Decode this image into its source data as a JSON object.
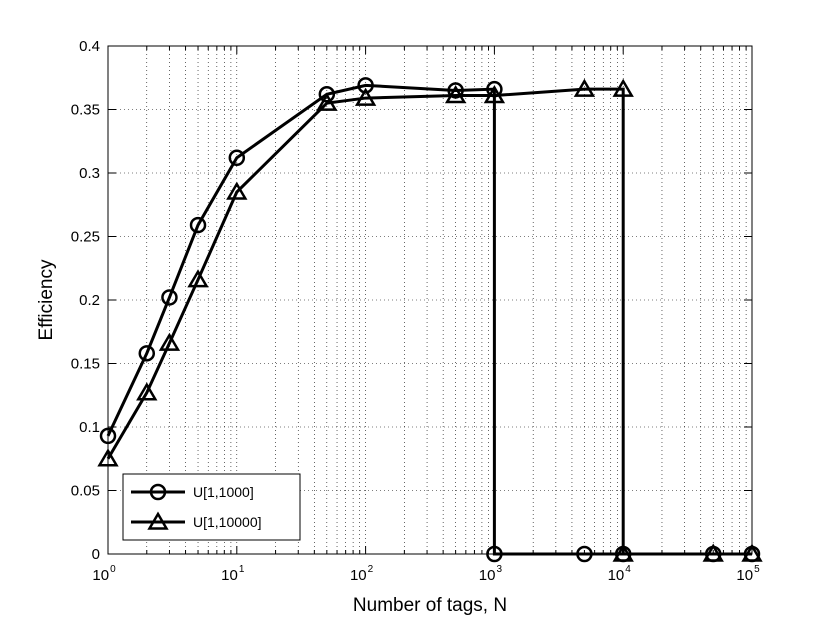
{
  "chart_data": {
    "type": "line",
    "xlabel": "Number of tags, N",
    "ylabel": "Efficiency",
    "x_scale": "log",
    "xlim": [
      1,
      100000
    ],
    "ylim": [
      0,
      0.4
    ],
    "x_ticks": [
      1,
      10,
      100,
      1000,
      10000,
      100000
    ],
    "x_tick_labels": [
      {
        "base": "10",
        "exp": "0"
      },
      {
        "base": "10",
        "exp": "1"
      },
      {
        "base": "10",
        "exp": "2"
      },
      {
        "base": "10",
        "exp": "3"
      },
      {
        "base": "10",
        "exp": "4"
      },
      {
        "base": "10",
        "exp": "5"
      }
    ],
    "y_ticks": [
      0,
      0.05,
      0.1,
      0.15,
      0.2,
      0.25,
      0.3,
      0.35,
      0.4
    ],
    "y_tick_labels": [
      "0",
      "0.05",
      "0.1",
      "0.15",
      "0.2",
      "0.25",
      "0.3",
      "0.35",
      "0.4"
    ],
    "grid": true,
    "legend_position": "bottom-left",
    "series": [
      {
        "name": "U[1,1000]",
        "marker": "circle",
        "color": "#000000",
        "x": [
          1,
          2,
          3,
          5,
          10,
          50,
          100,
          500,
          1000,
          1000,
          5000,
          10000,
          50000,
          100000
        ],
        "y": [
          0.093,
          0.158,
          0.202,
          0.259,
          0.312,
          0.362,
          0.369,
          0.365,
          0.366,
          0,
          0,
          0,
          0,
          0
        ]
      },
      {
        "name": "U[1,10000]",
        "marker": "triangle",
        "color": "#000000",
        "x": [
          1,
          2,
          3,
          5,
          10,
          50,
          100,
          500,
          1000,
          5000,
          10000,
          10000,
          50000,
          100000
        ],
        "y": [
          0.075,
          0.127,
          0.166,
          0.216,
          0.285,
          0.355,
          0.359,
          0.361,
          0.361,
          0.366,
          0.366,
          0,
          0,
          0
        ]
      }
    ]
  }
}
